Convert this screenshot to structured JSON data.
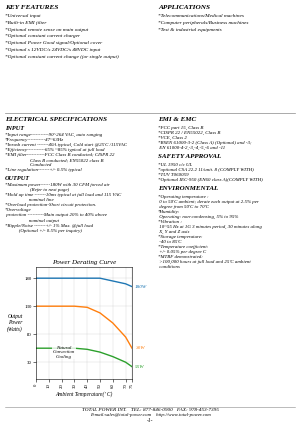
{
  "chart_data": {
    "type": "line",
    "title": "Power Derating Curve",
    "x_label": "Ambient Temperature(' C)",
    "y_label": "Output\nPower\n(Watts)",
    "x": [
      0,
      10,
      20,
      25,
      30,
      40,
      50,
      60,
      70,
      75
    ],
    "series": [
      {
        "name": "180W",
        "values": [
          180,
          180,
          180,
          180,
          180,
          180,
          180,
          175,
          170,
          165
        ]
      },
      {
        "name": "30W",
        "values": [
          130,
          130,
          130,
          130,
          130,
          128,
          118,
          100,
          75,
          55
        ]
      },
      {
        "name": "55W",
        "values": [
          55,
          55,
          55,
          55,
          55,
          53,
          48,
          40,
          30,
          22
        ]
      }
    ],
    "xlim": [
      0,
      75
    ],
    "ylim": [
      0,
      200
    ],
    "xticks": [
      0,
      10,
      20,
      30,
      40,
      50,
      60,
      70,
      75
    ],
    "yticks": [
      30,
      80,
      130,
      180
    ],
    "grid": true,
    "annotations": [
      {
        "text": "Natural\nConvection\nCooling",
        "x": 22,
        "y": 48
      }
    ]
  },
  "page": {
    "sections": [
      {
        "heading": "KEY FEATURES",
        "lines": [
          "*Universal input",
          "*Built-in EMI filter",
          "*Optional remote sense on main output",
          "*Optional constant current charger",
          "*Optional Power Good signal/Optional cover",
          "*Optional s 12VDC/s 24VDC/s 48VDC input",
          "*Optional constant current change (for single output)"
        ]
      },
      {
        "heading": "APPLICATIONS",
        "lines": [
          "*Telecommunications/Medical machines",
          "*Computer peripherals/Business machines",
          "*Test & industrial equipments"
        ]
      },
      {
        "heading": "ELECTRICAL SPECIFICATIONS",
        "subsections": [
          {
            "heading": "INPUT",
            "lines": [
              "*Input range-----------90~264 VAC, auto ranging",
              "*Frequency-----------47~63Hz",
              "*Inrush current -------40A typical, Cold start @25'C /115VAC",
              "*Efficiency-----------65% ~85% typical at full load",
              "*EMI filter-----------FCC Class B conducted; CISPR 22",
              "                    Class B conducted; EN55022 class B",
              "                    Conducted",
              "*Line regulation-------+/- 0.5% typical"
            ]
          },
          {
            "heading": "OUTPUT",
            "lines": [
              "*Maximum power------180W with 30 CFM forced air",
              "                    (Refer to next page)",
              "*Hold up time -------10ms typical at full load and 115 VAC",
              "                   nominal line",
              "*Overload protection-Short circuit protection.",
              "*Overvoltage",
              " protection ----------Main output 20% to 40% above",
              "                   nominal output",
              "*Ripple/Noise -------+/- 1% Max. @full load",
              "           (Optional +/- 0.5% per inquiry)"
            ]
          }
        ]
      },
      {
        "heading": "EMI & EMC",
        "lines": [
          "*FCC part 15, Class B",
          "*CISPR 22 / EN55022, Class B",
          "*VCE, Class 2",
          "*BSEN 61000-3-2 (Class A) (Optional) and -3;",
          " EN 61000-4-2,-3,-4,-5,-6 and -11"
        ]
      },
      {
        "heading": "SAFETY APPROVAL",
        "lines": [
          "*UL 1950 c/c UL",
          "*optional CSA 22.2 11/unit. 8 (COMPLY WITH)",
          "*TUV T060059",
          "*Optional IEC-950 (EN60 class A)(COMPLY WITH)"
        ]
      },
      {
        "heading": "ENVIRONMENTAL",
        "lines": [
          "*Operating temperature :",
          " 0 to 50'C ambient; derate each output at 2.5% per",
          " degree from 50'C to 70'C",
          "*Humidity:",
          " Operating: non-condensing, 5% to 95%",
          "*Vibration :",
          " 10~55 Hz at 1G 3 minutes period, 30 minutes along",
          " X, Y and Z axis",
          "*Storage temperature:",
          " -40 to 85'C",
          "*Temperature coefficient:",
          " +/- 0.05% per degree C",
          "*MTBF demonstrated:",
          " >100,000 hours at full load and 25'C ambient",
          " conditions"
        ]
      }
    ],
    "footer": [
      "TOTAL POWER INT.   TEL: 877-846-0900   FAX: 978-453-7395",
      "E-mail:sales@total-power.com    http://www.total-power.com",
      "-1-"
    ]
  }
}
